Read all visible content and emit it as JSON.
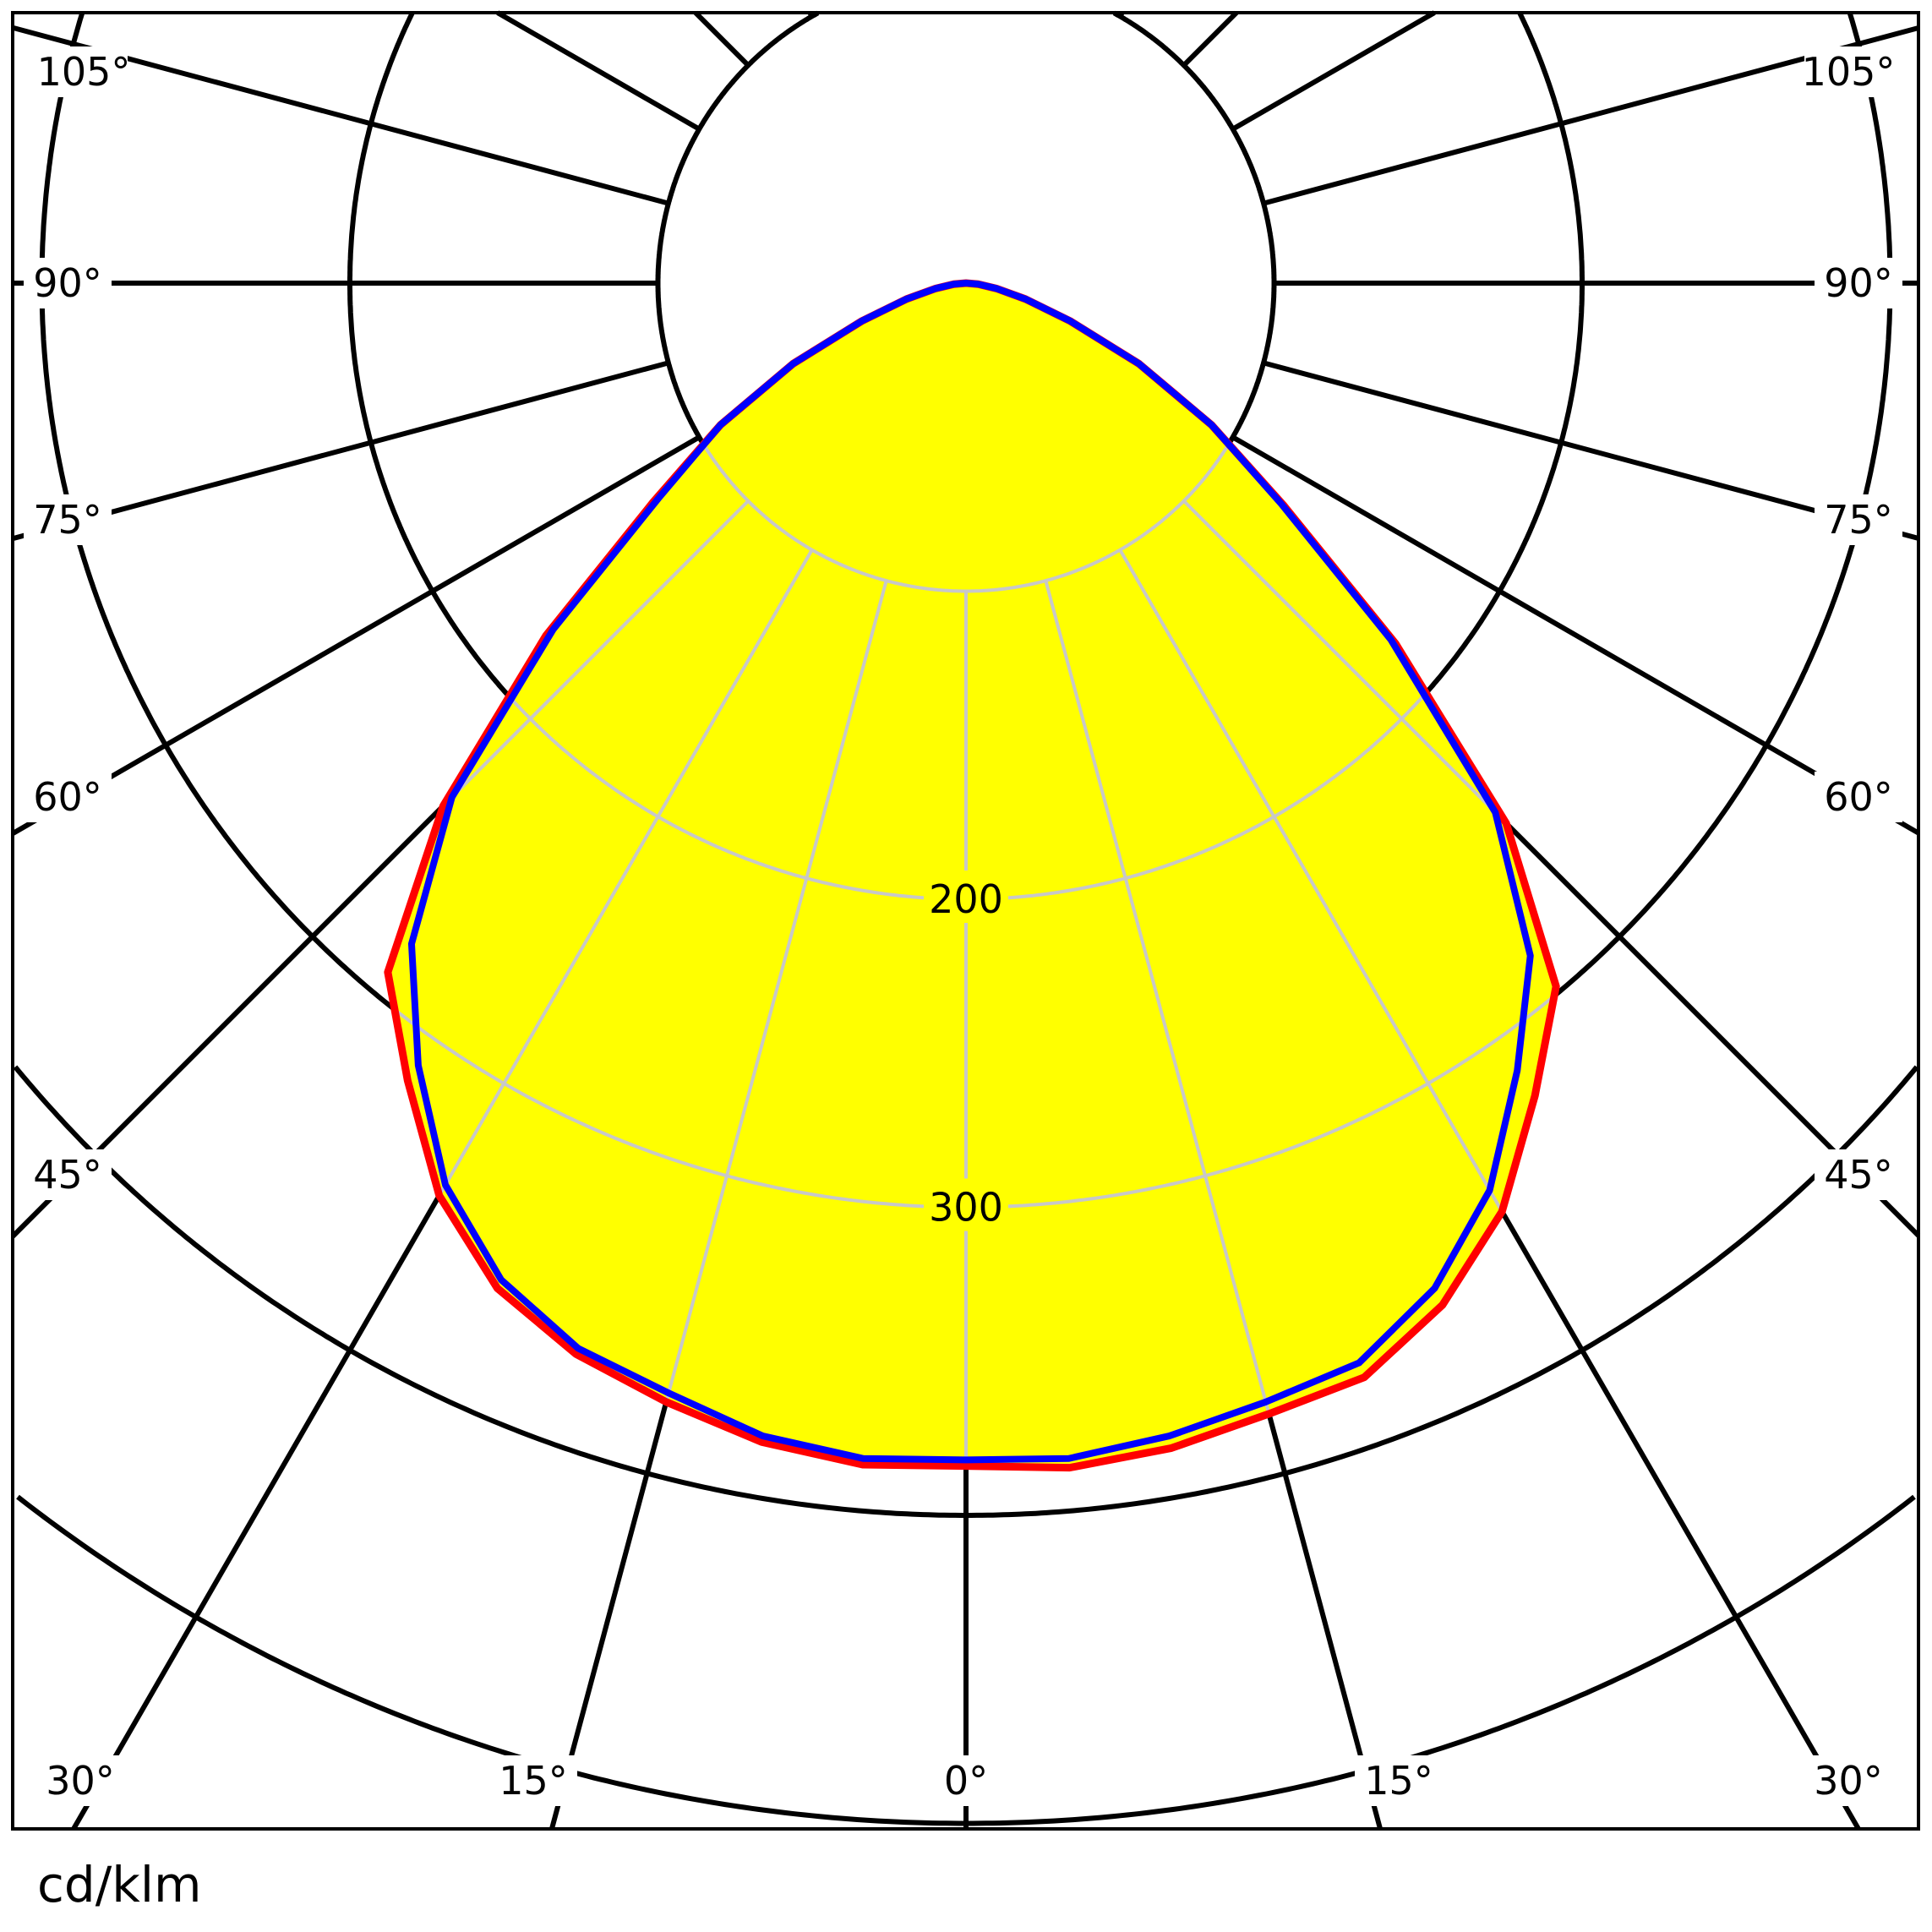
{
  "chart_data": {
    "type": "polar",
    "unit_label": "cd/klm",
    "radial_tick_labels": [
      "200",
      "300"
    ],
    "radial_grid_step": 100,
    "angle_labels_left": [
      "105°",
      "90°",
      "75°",
      "60°",
      "45°",
      "30°",
      "15°",
      "0°"
    ],
    "angle_labels_right": [
      "105°",
      "90°",
      "75°",
      "60°",
      "45°",
      "30°",
      "15°"
    ],
    "angles": [
      0,
      5,
      10,
      15,
      20,
      25,
      30,
      35,
      40,
      45,
      50,
      55,
      60,
      65,
      70,
      75,
      80,
      85,
      90
    ],
    "series": [
      {
        "color": "#ff0000",
        "left": [
          384,
          385,
          382,
          376,
          370,
          360,
          342,
          316,
          292,
          240,
          178,
          124,
          92,
          62,
          36,
          20,
          10,
          4,
          0
        ],
        "right": [
          384,
          386,
          384,
          380,
          378,
          366,
          348,
          322,
          298,
          248,
          182,
          126,
          92,
          62,
          36,
          20,
          10,
          4,
          0
        ]
      },
      {
        "color": "#0000ff",
        "left": [
          382,
          383,
          380,
          373,
          368,
          357,
          338,
          310,
          280,
          236,
          175,
          122,
          92,
          62,
          36,
          20,
          10,
          4,
          0
        ],
        "right": [
          382,
          383,
          380,
          376,
          373,
          360,
          340,
          312,
          285,
          243,
          180,
          125,
          92,
          62,
          36,
          20,
          10,
          4,
          0
        ]
      }
    ],
    "fill_color": "#ffff00",
    "grid_color": "#000000",
    "inner_grid_color": "#c8c8c8"
  }
}
